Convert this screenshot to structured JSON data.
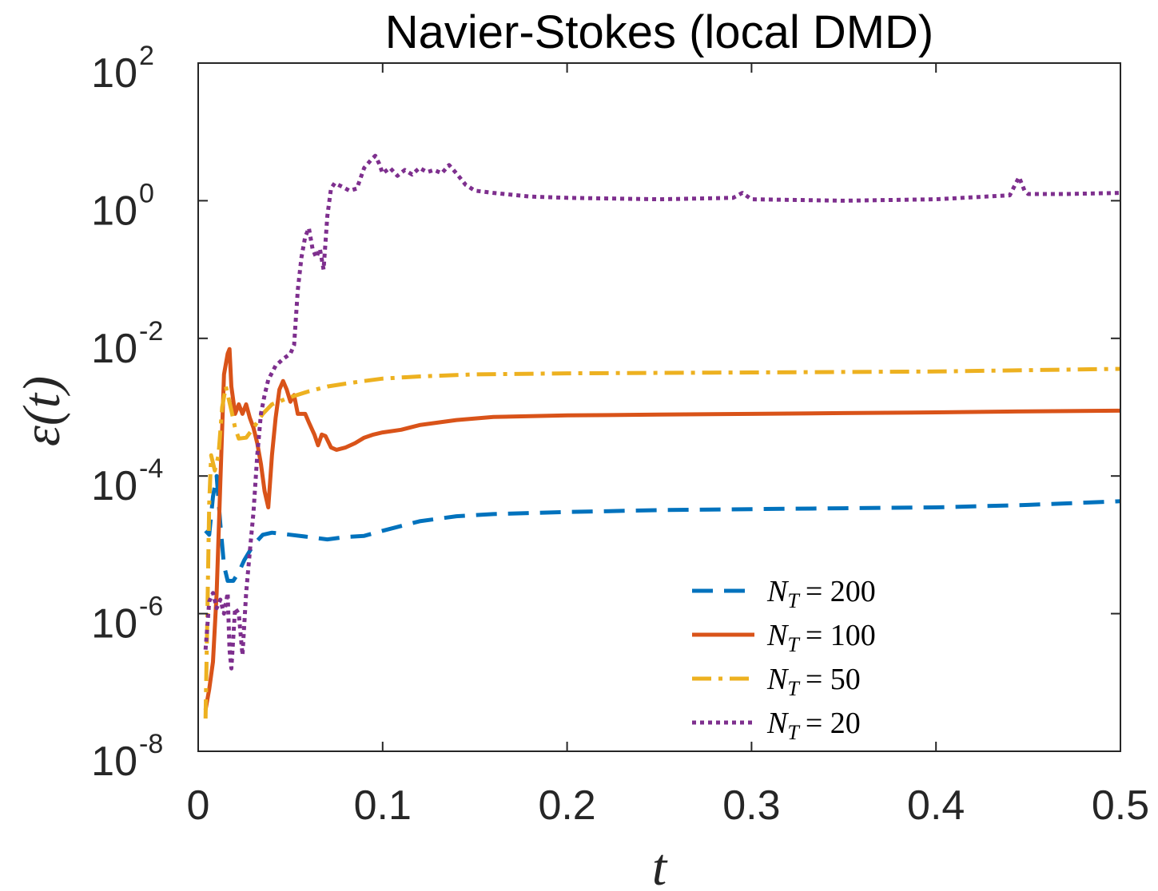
{
  "chart_data": {
    "type": "line",
    "title": "Navier-Stokes (local DMD)",
    "xlabel": "t",
    "ylabel": "ε(t)",
    "xlim": [
      0,
      0.5
    ],
    "ylim": [
      1e-08,
      100
    ],
    "yscale": "log",
    "grid": false,
    "legend_position": "bottom-right",
    "x_ticks": [
      {
        "value": 0,
        "label": "0"
      },
      {
        "value": 0.1,
        "label": "0.1"
      },
      {
        "value": 0.2,
        "label": "0.2"
      },
      {
        "value": 0.3,
        "label": "0.3"
      },
      {
        "value": 0.4,
        "label": "0.4"
      },
      {
        "value": 0.5,
        "label": "0.5"
      }
    ],
    "y_ticks": [
      {
        "value": 100,
        "base": "10",
        "exp": "2"
      },
      {
        "value": 1,
        "base": "10",
        "exp": "0"
      },
      {
        "value": 0.01,
        "base": "10",
        "exp": "-2"
      },
      {
        "value": 0.0001,
        "base": "10",
        "exp": "-4"
      },
      {
        "value": 1e-06,
        "base": "10",
        "exp": "-6"
      },
      {
        "value": 1e-08,
        "base": "10",
        "exp": "-8"
      }
    ],
    "series": [
      {
        "name": "N_T = 200",
        "legend_main": "N",
        "legend_sub": "T",
        "legend_rest": "= 200",
        "color": "#0072BD",
        "dash": "dashed",
        "points": [
          [
            0.004,
            1.6e-05
          ],
          [
            0.006,
            1.4e-05
          ],
          [
            0.008,
            5e-05
          ],
          [
            0.01,
            0.0001
          ],
          [
            0.012,
            2e-05
          ],
          [
            0.014,
            5e-06
          ],
          [
            0.016,
            3e-06
          ],
          [
            0.019,
            3e-06
          ],
          [
            0.022,
            4e-06
          ],
          [
            0.025,
            6e-06
          ],
          [
            0.03,
            1e-05
          ],
          [
            0.035,
            1.4e-05
          ],
          [
            0.04,
            1.5e-05
          ],
          [
            0.05,
            1.4e-05
          ],
          [
            0.06,
            1.3e-05
          ],
          [
            0.07,
            1.2e-05
          ],
          [
            0.08,
            1.3e-05
          ],
          [
            0.09,
            1.35e-05
          ],
          [
            0.1,
            1.6e-05
          ],
          [
            0.12,
            2.2e-05
          ],
          [
            0.14,
            2.6e-05
          ],
          [
            0.16,
            2.8e-05
          ],
          [
            0.2,
            3e-05
          ],
          [
            0.25,
            3.2e-05
          ],
          [
            0.3,
            3.3e-05
          ],
          [
            0.35,
            3.4e-05
          ],
          [
            0.4,
            3.5e-05
          ],
          [
            0.45,
            3.8e-05
          ],
          [
            0.5,
            4.3e-05
          ]
        ]
      },
      {
        "name": "N_T = 100",
        "legend_main": "N",
        "legend_sub": "T",
        "legend_rest": "= 100",
        "color": "#D95319",
        "dash": "solid",
        "points": [
          [
            0.004,
            4e-08
          ],
          [
            0.006,
            8e-08
          ],
          [
            0.008,
            2e-07
          ],
          [
            0.01,
            2e-06
          ],
          [
            0.012,
            8e-05
          ],
          [
            0.014,
            0.003
          ],
          [
            0.016,
            0.006
          ],
          [
            0.017,
            0.007
          ],
          [
            0.018,
            0.002
          ],
          [
            0.02,
            0.0008
          ],
          [
            0.022,
            0.0011
          ],
          [
            0.024,
            0.0008
          ],
          [
            0.026,
            0.0011
          ],
          [
            0.028,
            0.0007
          ],
          [
            0.03,
            0.0005
          ],
          [
            0.032,
            0.0003
          ],
          [
            0.034,
            0.00015
          ],
          [
            0.036,
            6e-05
          ],
          [
            0.038,
            3.5e-05
          ],
          [
            0.04,
            0.0002
          ],
          [
            0.042,
            0.0007
          ],
          [
            0.044,
            0.0018
          ],
          [
            0.046,
            0.0024
          ],
          [
            0.048,
            0.0018
          ],
          [
            0.05,
            0.0012
          ],
          [
            0.052,
            0.0015
          ],
          [
            0.054,
            0.0008
          ],
          [
            0.058,
            0.0008
          ],
          [
            0.06,
            0.0006
          ],
          [
            0.063,
            0.0004
          ],
          [
            0.065,
            0.00028
          ],
          [
            0.067,
            0.0004
          ],
          [
            0.069,
            0.00038
          ],
          [
            0.072,
            0.00026
          ],
          [
            0.075,
            0.00024
          ],
          [
            0.08,
            0.00026
          ],
          [
            0.085,
            0.0003
          ],
          [
            0.09,
            0.00036
          ],
          [
            0.095,
            0.0004
          ],
          [
            0.1,
            0.00043
          ],
          [
            0.11,
            0.00047
          ],
          [
            0.12,
            0.00055
          ],
          [
            0.14,
            0.00065
          ],
          [
            0.16,
            0.00072
          ],
          [
            0.2,
            0.00076
          ],
          [
            0.25,
            0.00078
          ],
          [
            0.3,
            0.0008
          ],
          [
            0.35,
            0.00082
          ],
          [
            0.4,
            0.00084
          ],
          [
            0.45,
            0.00087
          ],
          [
            0.5,
            0.00089
          ]
        ]
      },
      {
        "name": "N_T = 50",
        "legend_main": "N",
        "legend_sub": "T",
        "legend_rest": "= 50",
        "color": "#EDB120",
        "dash": "dashdot",
        "points": [
          [
            0.004,
            3e-08
          ],
          [
            0.005,
            1e-06
          ],
          [
            0.006,
            4e-05
          ],
          [
            0.007,
            0.0002
          ],
          [
            0.009,
            0.00012
          ],
          [
            0.011,
            0.0002
          ],
          [
            0.013,
            0.001
          ],
          [
            0.015,
            0.002
          ],
          [
            0.018,
            0.0009
          ],
          [
            0.02,
            0.0005
          ],
          [
            0.022,
            0.00035
          ],
          [
            0.026,
            0.00036
          ],
          [
            0.03,
            0.0005
          ],
          [
            0.035,
            0.0008
          ],
          [
            0.04,
            0.0011
          ],
          [
            0.05,
            0.0014
          ],
          [
            0.06,
            0.0017
          ],
          [
            0.07,
            0.002
          ],
          [
            0.08,
            0.0022
          ],
          [
            0.09,
            0.0024
          ],
          [
            0.1,
            0.0026
          ],
          [
            0.12,
            0.0028
          ],
          [
            0.15,
            0.003
          ],
          [
            0.2,
            0.0031
          ],
          [
            0.3,
            0.0032
          ],
          [
            0.4,
            0.0033
          ],
          [
            0.5,
            0.0036
          ]
        ]
      },
      {
        "name": "N_T = 20",
        "legend_main": "N",
        "legend_sub": "T",
        "legend_rest": "= 20",
        "color": "#7E2F8E",
        "dash": "dotted",
        "points": [
          [
            0.004,
            3e-07
          ],
          [
            0.006,
            1.5e-06
          ],
          [
            0.008,
            2e-06
          ],
          [
            0.01,
            1.2e-06
          ],
          [
            0.012,
            1.6e-06
          ],
          [
            0.014,
            1e-06
          ],
          [
            0.016,
            2e-06
          ],
          [
            0.017,
            3e-07
          ],
          [
            0.018,
            1.6e-07
          ],
          [
            0.02,
            1.2e-06
          ],
          [
            0.022,
            1e-06
          ],
          [
            0.024,
            2.5e-07
          ],
          [
            0.026,
            2e-06
          ],
          [
            0.028,
            8e-06
          ],
          [
            0.03,
            3e-05
          ],
          [
            0.032,
            0.0002
          ],
          [
            0.034,
            0.0008
          ],
          [
            0.036,
            0.0015
          ],
          [
            0.038,
            0.0025
          ],
          [
            0.042,
            0.004
          ],
          [
            0.046,
            0.005
          ],
          [
            0.05,
            0.006
          ],
          [
            0.052,
            0.008
          ],
          [
            0.054,
            0.05
          ],
          [
            0.056,
            0.15
          ],
          [
            0.058,
            0.3
          ],
          [
            0.06,
            0.4
          ],
          [
            0.062,
            0.2
          ],
          [
            0.064,
            0.15
          ],
          [
            0.066,
            0.2
          ],
          [
            0.068,
            0.1
          ],
          [
            0.07,
            0.6
          ],
          [
            0.072,
            1.5
          ],
          [
            0.074,
            1.8
          ],
          [
            0.078,
            1.6
          ],
          [
            0.082,
            1.4
          ],
          [
            0.086,
            1.5
          ],
          [
            0.09,
            3
          ],
          [
            0.094,
            4
          ],
          [
            0.096,
            4.5
          ],
          [
            0.098,
            3.5
          ],
          [
            0.1,
            2.5
          ],
          [
            0.104,
            3
          ],
          [
            0.108,
            2.3
          ],
          [
            0.112,
            2.8
          ],
          [
            0.116,
            2.4
          ],
          [
            0.12,
            3
          ],
          [
            0.124,
            2.6
          ],
          [
            0.128,
            2.8
          ],
          [
            0.132,
            2.5
          ],
          [
            0.136,
            3.3
          ],
          [
            0.14,
            2.5
          ],
          [
            0.145,
            1.7
          ],
          [
            0.15,
            1.4
          ],
          [
            0.16,
            1.3
          ],
          [
            0.18,
            1.15
          ],
          [
            0.2,
            1.1
          ],
          [
            0.25,
            1.05
          ],
          [
            0.29,
            1.1
          ],
          [
            0.295,
            1.3
          ],
          [
            0.3,
            1.05
          ],
          [
            0.35,
            1.0
          ],
          [
            0.4,
            1.05
          ],
          [
            0.44,
            1.2
          ],
          [
            0.445,
            2.2
          ],
          [
            0.448,
            1.4
          ],
          [
            0.45,
            1.25
          ],
          [
            0.47,
            1.25
          ],
          [
            0.5,
            1.3
          ]
        ]
      }
    ]
  }
}
